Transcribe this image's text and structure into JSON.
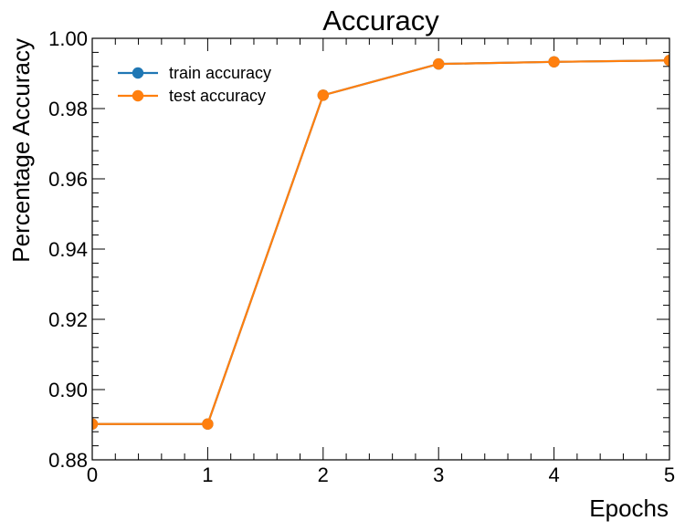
{
  "chart_data": {
    "type": "line",
    "title": "Accuracy",
    "xlabel": "Epochs",
    "ylabel": "Percentage Accuracy",
    "xlim": [
      0,
      5
    ],
    "ylim": [
      0.88,
      1.0
    ],
    "x": [
      0,
      1,
      2,
      3,
      4,
      5
    ],
    "x_ticks": [
      "0",
      "1",
      "2",
      "3",
      "4",
      "5"
    ],
    "y_ticks": [
      "0.88",
      "0.90",
      "0.92",
      "0.94",
      "0.96",
      "0.98",
      "1.00"
    ],
    "y_tick_values": [
      0.88,
      0.9,
      0.92,
      0.94,
      0.96,
      0.98,
      1.0
    ],
    "grid": false,
    "legend_position": "top-left",
    "series": [
      {
        "name": "train accuracy",
        "color": "#1f77b4",
        "values": [
          0.8902,
          0.8902,
          0.9838,
          0.9927,
          0.9933,
          0.9937
        ]
      },
      {
        "name": "test accuracy",
        "color": "#ff7f0e",
        "values": [
          0.8902,
          0.8902,
          0.9838,
          0.9927,
          0.9933,
          0.9937
        ]
      }
    ]
  }
}
